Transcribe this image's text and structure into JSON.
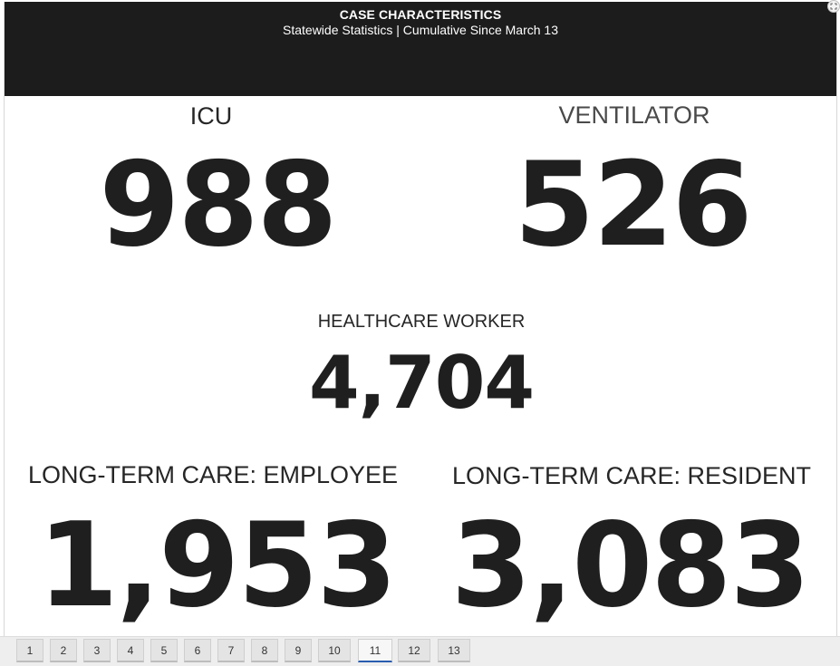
{
  "header": {
    "title": "CASE CHARACTERISTICS",
    "subtitle": "Statewide Statistics  |  Cumulative Since March 13"
  },
  "stats": {
    "icu": {
      "label": "ICU",
      "value": "988"
    },
    "ventilator": {
      "label": "VENTILATOR",
      "value": "526"
    },
    "healthcare_worker": {
      "label": "HEALTHCARE WORKER",
      "value": "4,704"
    },
    "ltc_employee": {
      "label": "LONG-TERM CARE: EMPLOYEE",
      "value": "1,953"
    },
    "ltc_resident": {
      "label": "LONG-TERM CARE: RESIDENT",
      "value": "3,083"
    }
  },
  "pagination": {
    "pages": [
      "1",
      "2",
      "3",
      "4",
      "5",
      "6",
      "7",
      "8",
      "9",
      "10",
      "11",
      "12",
      "13"
    ],
    "active": "11"
  },
  "icons": {
    "expand": "expand-icon"
  },
  "colors": {
    "header_bg": "#1c1c1c",
    "active_tab_underline": "#2a5db0"
  }
}
